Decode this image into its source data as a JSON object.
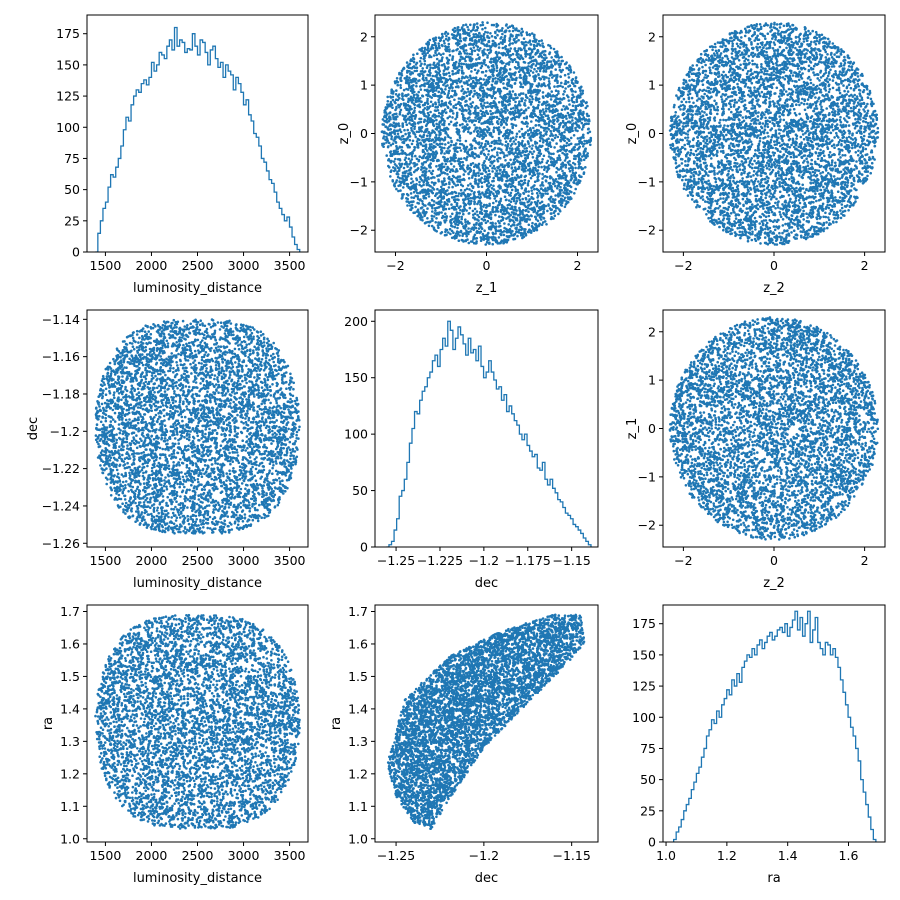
{
  "figure": {
    "background": "#ffffff",
    "series_color": "#1f77b4",
    "grid": false
  },
  "chart_data": [
    {
      "id": "hist-luminosity-distance",
      "type": "histogram",
      "xlabel": "luminosity_distance",
      "ylabel": "",
      "xlim": [
        1300,
        3700
      ],
      "ylim": [
        0,
        190
      ],
      "xticks": [
        1500,
        2000,
        2500,
        3000,
        3500
      ],
      "yticks": [
        0,
        25,
        50,
        75,
        100,
        125,
        150,
        175
      ],
      "bin_range": [
        1390,
        3610
      ],
      "bins": 80,
      "values": [
        0,
        15,
        25,
        35,
        40,
        52,
        62,
        60,
        68,
        75,
        85,
        98,
        108,
        105,
        118,
        125,
        130,
        128,
        135,
        138,
        134,
        140,
        152,
        145,
        150,
        160,
        158,
        155,
        165,
        170,
        162,
        180,
        165,
        170,
        168,
        160,
        163,
        162,
        175,
        165,
        158,
        170,
        168,
        160,
        150,
        162,
        165,
        155,
        148,
        152,
        140,
        150,
        145,
        142,
        130,
        140,
        135,
        128,
        118,
        122,
        110,
        105,
        95,
        92,
        85,
        75,
        72,
        65,
        58,
        55,
        48,
        40,
        35,
        30,
        25,
        28,
        20,
        12,
        6,
        2
      ]
    },
    {
      "id": "scatter-z1-z0",
      "type": "scatter",
      "xlabel": "z_1",
      "ylabel": "z_0",
      "xlim": [
        -2.45,
        2.45
      ],
      "ylim": [
        -2.45,
        2.45
      ],
      "xticks": [
        -2,
        0,
        2
      ],
      "yticks": [
        -2,
        -1,
        0,
        1,
        2
      ],
      "distribution": "uniform disk",
      "center": [
        0,
        0
      ],
      "radius": 2.3
    },
    {
      "id": "scatter-z2-z0",
      "type": "scatter",
      "xlabel": "z_2",
      "ylabel": "z_0",
      "xlim": [
        -2.45,
        2.45
      ],
      "ylim": [
        -2.45,
        2.45
      ],
      "xticks": [
        -2,
        0,
        2
      ],
      "yticks": [
        -2,
        -1,
        0,
        1,
        2
      ],
      "distribution": "uniform disk",
      "center": [
        0,
        0
      ],
      "radius": 2.3
    },
    {
      "id": "scatter-distance-dec",
      "type": "scatter",
      "xlabel": "luminosity_distance",
      "ylabel": "dec",
      "xlim": [
        1300,
        3700
      ],
      "ylim": [
        -1.262,
        -1.135
      ],
      "xticks": [
        1500,
        2000,
        2500,
        3000,
        3500
      ],
      "yticks": [
        -1.26,
        -1.24,
        -1.22,
        -1.2,
        -1.18,
        -1.16,
        -1.14
      ],
      "distribution": "rounded blob",
      "x_range": [
        1390,
        3610
      ],
      "y_range": [
        -1.255,
        -1.14
      ]
    },
    {
      "id": "hist-dec",
      "type": "histogram",
      "xlabel": "dec",
      "ylabel": "",
      "xlim": [
        -1.262,
        -1.135
      ],
      "ylim": [
        0,
        210
      ],
      "xticks": [
        -1.25,
        -1.225,
        -1.2,
        -1.175,
        -1.15
      ],
      "yticks": [
        0,
        50,
        100,
        150,
        200
      ],
      "bin_range": [
        -1.2555,
        -1.139
      ],
      "bins": 80,
      "values": [
        0,
        2,
        5,
        15,
        25,
        45,
        50,
        60,
        75,
        92,
        105,
        120,
        118,
        130,
        138,
        142,
        150,
        155,
        165,
        170,
        160,
        175,
        185,
        178,
        200,
        192,
        175,
        185,
        195,
        188,
        180,
        170,
        185,
        172,
        175,
        165,
        178,
        160,
        150,
        155,
        165,
        155,
        148,
        140,
        142,
        130,
        135,
        120,
        125,
        118,
        112,
        108,
        100,
        95,
        100,
        90,
        85,
        80,
        82,
        70,
        68,
        75,
        60,
        55,
        60,
        52,
        48,
        42,
        40,
        35,
        30,
        28,
        25,
        20,
        18,
        15,
        12,
        8,
        5,
        2
      ]
    },
    {
      "id": "scatter-z2-z1",
      "type": "scatter",
      "xlabel": "z_2",
      "ylabel": "z_1",
      "xlim": [
        -2.45,
        2.45
      ],
      "ylim": [
        -2.45,
        2.45
      ],
      "xticks": [
        -2,
        0,
        2
      ],
      "yticks": [
        -2,
        -1,
        0,
        1,
        2
      ],
      "distribution": "uniform disk",
      "center": [
        0,
        0
      ],
      "radius": 2.3
    },
    {
      "id": "scatter-distance-ra",
      "type": "scatter",
      "xlabel": "luminosity_distance",
      "ylabel": "ra",
      "xlim": [
        1300,
        3700
      ],
      "ylim": [
        0.99,
        1.72
      ],
      "xticks": [
        1500,
        2000,
        2500,
        3000,
        3500
      ],
      "yticks": [
        1.0,
        1.1,
        1.2,
        1.3,
        1.4,
        1.5,
        1.6,
        1.7
      ],
      "ytick_labels": [
        "1.0",
        "1.1",
        "1.2",
        "1.3",
        "1.4",
        "1.5",
        "1.6",
        "1.7"
      ],
      "distribution": "rounded blob",
      "x_range": [
        1390,
        3610
      ],
      "y_range": [
        1.03,
        1.69
      ]
    },
    {
      "id": "scatter-dec-ra",
      "type": "scatter",
      "xlabel": "dec",
      "ylabel": "ra",
      "xlim": [
        -1.262,
        -1.135
      ],
      "ylim": [
        0.99,
        1.72
      ],
      "xticks": [
        -1.25,
        -1.2,
        -1.15
      ],
      "yticks": [
        1.0,
        1.1,
        1.2,
        1.3,
        1.4,
        1.5,
        1.6,
        1.7
      ],
      "ytick_labels": [
        "1.0",
        "1.1",
        "1.2",
        "1.3",
        "1.4",
        "1.5",
        "1.6",
        "1.7"
      ],
      "distribution": "curved band",
      "outline": [
        [
          -1.255,
          1.23
        ],
        [
          -1.245,
          1.43
        ],
        [
          -1.22,
          1.56
        ],
        [
          -1.19,
          1.64
        ],
        [
          -1.16,
          1.69
        ],
        [
          -1.145,
          1.69
        ],
        [
          -1.142,
          1.6
        ],
        [
          -1.16,
          1.5
        ],
        [
          -1.2,
          1.28
        ],
        [
          -1.22,
          1.12
        ],
        [
          -1.23,
          1.03
        ],
        [
          -1.24,
          1.05
        ],
        [
          -1.25,
          1.13
        ]
      ]
    },
    {
      "id": "hist-ra",
      "type": "histogram",
      "xlabel": "ra",
      "ylabel": "",
      "xlim": [
        0.99,
        1.72
      ],
      "ylim": [
        0,
        190
      ],
      "xticks": [
        1.0,
        1.2,
        1.4,
        1.6
      ],
      "xtick_labels": [
        "1.0",
        "1.2",
        "1.4",
        "1.6"
      ],
      "yticks": [
        0,
        25,
        50,
        75,
        100,
        125,
        150,
        175
      ],
      "bin_range": [
        1.025,
        1.69
      ],
      "bins": 80,
      "values": [
        2,
        8,
        12,
        18,
        25,
        30,
        35,
        42,
        48,
        55,
        60,
        68,
        75,
        85,
        90,
        98,
        95,
        105,
        100,
        110,
        115,
        122,
        118,
        130,
        125,
        135,
        128,
        140,
        145,
        150,
        148,
        155,
        150,
        158,
        162,
        155,
        160,
        165,
        168,
        162,
        165,
        170,
        172,
        168,
        175,
        165,
        172,
        178,
        185,
        170,
        180,
        165,
        175,
        185,
        160,
        170,
        180,
        160,
        155,
        150,
        160,
        158,
        150,
        155,
        148,
        140,
        130,
        120,
        110,
        100,
        92,
        85,
        75,
        65,
        50,
        40,
        30,
        20,
        10,
        2
      ]
    }
  ]
}
